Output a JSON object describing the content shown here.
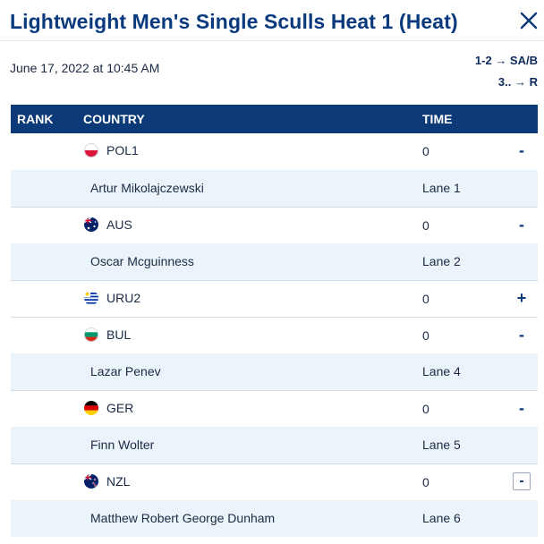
{
  "header": {
    "title": "Lightweight Men's Single Sculls Heat 1 (Heat)",
    "close_label": "×"
  },
  "meta": {
    "date": "June 17, 2022 at 10:45 AM",
    "progression": [
      "1-2 → SA/B",
      "3.. → R"
    ]
  },
  "table": {
    "columns": [
      "RANK",
      "COUNTRY",
      "TIME"
    ],
    "entries": [
      {
        "country": "POL1",
        "time": "0",
        "toggle": "-",
        "athlete": "Artur Mikolajczewski",
        "lane": "Lane 1"
      },
      {
        "country": "AUS",
        "time": "0",
        "toggle": "-",
        "athlete": "Oscar Mcguinness",
        "lane": "Lane 2"
      },
      {
        "country": "URU2",
        "time": "0",
        "toggle": "+"
      },
      {
        "country": "BUL",
        "time": "0",
        "toggle": "-",
        "athlete": "Lazar Penev",
        "lane": "Lane 4"
      },
      {
        "country": "GER",
        "time": "0",
        "toggle": "-",
        "athlete": "Finn Wolter",
        "lane": "Lane 5"
      },
      {
        "country": "NZL",
        "time": "0",
        "toggle": "-",
        "athlete": "Matthew Robert George Dunham",
        "lane": "Lane 6"
      }
    ]
  },
  "colors": {
    "title": "#0a3a7e",
    "header_bg": "#0c3a78",
    "athlete_row_bg": "#ecf4fb"
  }
}
